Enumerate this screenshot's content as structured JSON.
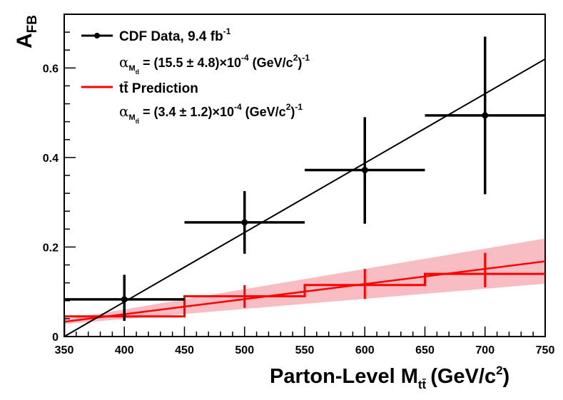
{
  "chart_data": {
    "type": "line",
    "xlabel_main": "Parton-Level M",
    "xlabel_sub": "tt̄",
    "xlabel_unit": "(GeV/c",
    "xlabel_unit_sup": "2",
    "xlabel_unit_end": ")",
    "ylabel_main": "A",
    "ylabel_sub": "FB",
    "xlim": [
      350,
      750
    ],
    "ylim": [
      0,
      0.72
    ],
    "x_ticks": [
      350,
      400,
      450,
      500,
      550,
      600,
      650,
      700,
      750
    ],
    "y_ticks": [
      0,
      0.2,
      0.4,
      0.6
    ],
    "y_tick_labels": [
      "0",
      "0.2",
      "0.4",
      "0.6"
    ],
    "series": [
      {
        "name": "CDF Data, 9.4 fb-1",
        "kind": "data_points",
        "color": "#000000",
        "points": [
          {
            "x": 400,
            "y": 0.083,
            "xerr": [
              350,
              450
            ],
            "yerr": [
              0.035,
              0.138
            ]
          },
          {
            "x": 500,
            "y": 0.255,
            "xerr": [
              450,
              550
            ],
            "yerr": [
              0.185,
              0.325
            ]
          },
          {
            "x": 600,
            "y": 0.372,
            "xerr": [
              550,
              650
            ],
            "yerr": [
              0.252,
              0.49
            ]
          },
          {
            "x": 700,
            "y": 0.494,
            "xerr": [
              650,
              750
            ],
            "yerr": [
              0.318,
              0.67
            ]
          }
        ]
      },
      {
        "name": "CDF Data fit",
        "kind": "fit_line",
        "color": "#000000",
        "slope_per_gev": 0.00155,
        "x_intercept": 350,
        "x_range": [
          350,
          750
        ]
      },
      {
        "name": "tt̄ Prediction",
        "kind": "histogram",
        "color": "#ff0000",
        "bins": [
          {
            "x0": 350,
            "x1": 450,
            "y": 0.045
          },
          {
            "x0": 450,
            "x1": 550,
            "y": 0.09
          },
          {
            "x0": 550,
            "x1": 650,
            "y": 0.115
          },
          {
            "x0": 650,
            "x1": 750,
            "y": 0.14
          }
        ],
        "points": [
          {
            "x": 400,
            "y": 0.048,
            "yerr": [
              0.035,
              0.061
            ]
          },
          {
            "x": 500,
            "y": 0.086,
            "yerr": [
              0.064,
              0.115
            ]
          },
          {
            "x": 600,
            "y": 0.116,
            "yerr": [
              0.084,
              0.151
            ]
          },
          {
            "x": 700,
            "y": 0.147,
            "yerr": [
              0.11,
              0.187
            ]
          }
        ]
      },
      {
        "name": "tt̄ Prediction fit",
        "kind": "fit_line_with_band",
        "color": "#ff0000",
        "band_color": "#f7b2b7",
        "line": [
          [
            350,
            0.033
          ],
          [
            750,
            0.168
          ]
        ],
        "band_upper": [
          [
            350,
            0.038
          ],
          [
            750,
            0.219
          ]
        ],
        "band_lower": [
          [
            350,
            0.028
          ],
          [
            750,
            0.118
          ]
        ]
      }
    ],
    "legend": {
      "placement": "top-left",
      "entries": [
        {
          "label_main": "CDF Data, 9.4 fb",
          "label_sup": "-1",
          "fit_prefix": "α",
          "fit_sub": "M",
          "fit_subsub": "tt̄",
          "fit_text": " = (15.5 ± 4.8)×10",
          "fit_exp": "-4",
          "fit_units": " (GeV/c",
          "fit_units_sup": "2",
          "fit_units_end": ")",
          "fit_units_exp": "-1"
        },
        {
          "label_main": "tt̄ Prediction",
          "label_sup": "",
          "fit_prefix": "α",
          "fit_sub": "M",
          "fit_subsub": "tt̄",
          "fit_text": " = (3.4 ± 1.2)×10",
          "fit_exp": "-4",
          "fit_units": " (GeV/c",
          "fit_units_sup": "2",
          "fit_units_end": ")",
          "fit_units_exp": "-1"
        }
      ]
    }
  }
}
